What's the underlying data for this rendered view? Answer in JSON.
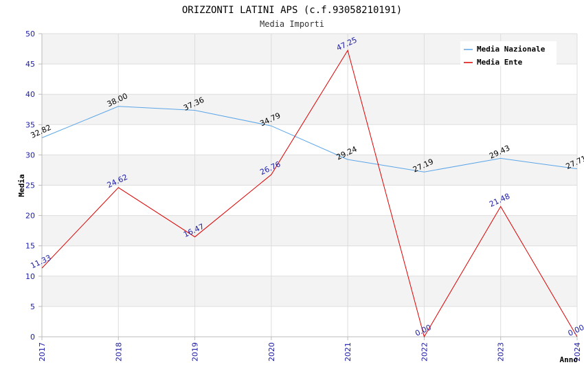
{
  "chart_data": {
    "type": "line",
    "title": "ORIZZONTI LATINI APS (c.f.93058210191)",
    "subtitle": "Media Importi",
    "xlabel": "Anno",
    "ylabel": "Media",
    "categories": [
      "2017",
      "2018",
      "2019",
      "2020",
      "2021",
      "2022",
      "2023",
      "2024"
    ],
    "ylim": [
      0,
      50
    ],
    "yticks": [
      0,
      5,
      10,
      15,
      20,
      25,
      30,
      35,
      40,
      45,
      50
    ],
    "grid": true,
    "legend_position": "top-right",
    "series": [
      {
        "name": "Media Nazionale",
        "color": "#5aa5e8",
        "label_color": "#000000",
        "values": [
          32.82,
          38.0,
          37.36,
          34.79,
          29.24,
          27.19,
          29.43,
          27.71
        ],
        "labels": [
          "32.82",
          "38.00",
          "37.36",
          "34.79",
          "29.24",
          "27.19",
          "29.43",
          "27.71"
        ]
      },
      {
        "name": "Media Ente",
        "color": "#e00000",
        "label_color": "#1a1aa6",
        "values": [
          11.33,
          24.62,
          16.47,
          26.76,
          47.25,
          0.0,
          21.48,
          0.0
        ],
        "labels": [
          "11.33",
          "24.62",
          "16.47",
          "26.76",
          "47.25",
          "0.00",
          "21.48",
          "0.00"
        ]
      }
    ]
  }
}
